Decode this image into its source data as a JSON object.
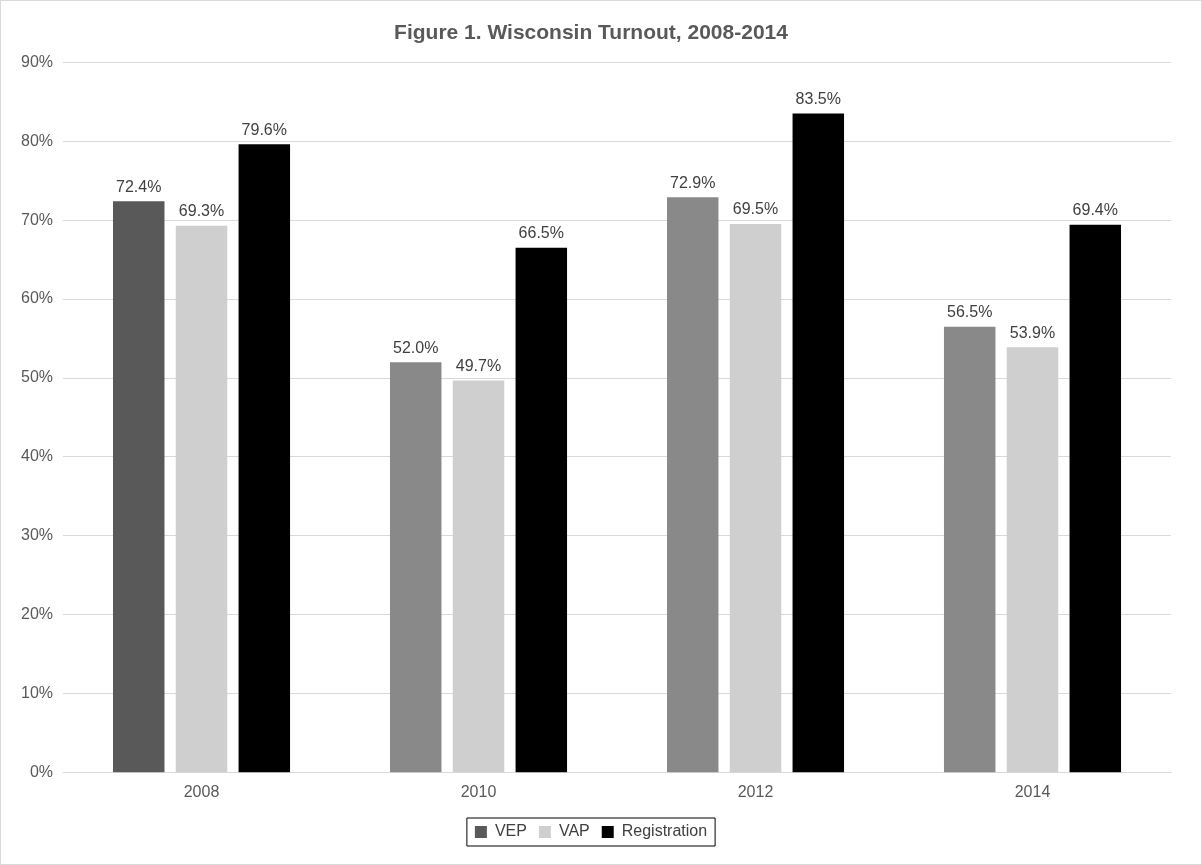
{
  "chart_data": {
    "type": "bar",
    "title": "Figure 1. Wisconsin Turnout, 2008-2014",
    "categories": [
      "2008",
      "2010",
      "2012",
      "2014"
    ],
    "series": [
      {
        "name": "VEP",
        "color": "#898989",
        "colors": [
          "#595959",
          "#898989",
          "#898989",
          "#898989"
        ],
        "values": [
          72.4,
          52.0,
          72.9,
          56.5
        ],
        "value_labels": [
          "72.4%",
          "52.0%",
          "72.9%",
          "56.5%"
        ]
      },
      {
        "name": "VAP",
        "color": "#d0cfd0",
        "values": [
          69.3,
          49.7,
          69.5,
          53.9
        ],
        "value_labels": [
          "69.3%",
          "49.7%",
          "69.5%",
          "53.9%"
        ]
      },
      {
        "name": "Registration",
        "color": "#000000",
        "values": [
          79.6,
          66.5,
          83.5,
          69.4
        ],
        "value_labels": [
          "79.6%",
          "66.5%",
          "83.5%",
          "69.4%"
        ]
      }
    ],
    "ylim": [
      0,
      90
    ],
    "yticks": [
      {
        "value": 0,
        "label": "0%"
      },
      {
        "value": 10,
        "label": "10%"
      },
      {
        "value": 20,
        "label": "20%"
      },
      {
        "value": 30,
        "label": "30%"
      },
      {
        "value": 40,
        "label": "40%"
      },
      {
        "value": 50,
        "label": "50%"
      },
      {
        "value": 60,
        "label": "60%"
      },
      {
        "value": 70,
        "label": "70%"
      },
      {
        "value": 80,
        "label": "80%"
      },
      {
        "value": 90,
        "label": "90%"
      }
    ],
    "grid": "y",
    "legend": "bottom"
  }
}
